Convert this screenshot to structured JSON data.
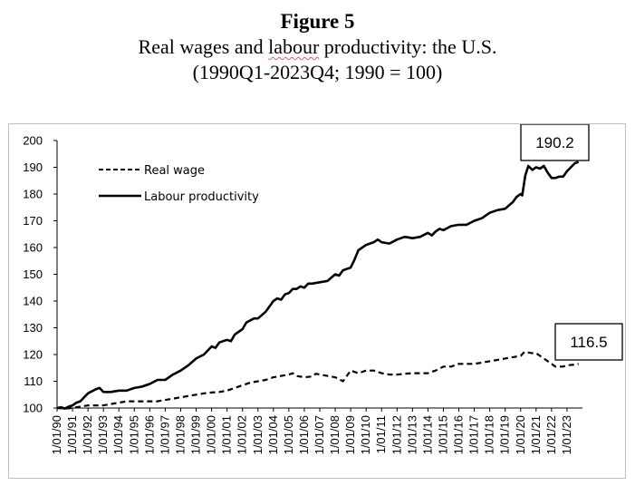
{
  "figure": {
    "label": "Figure 5",
    "title_part1": "Real wages and ",
    "title_underlined": "labour",
    "title_part2": " productivity: the U.S.",
    "subtitle": "(1990Q1-2023Q4; 1990 = 100)"
  },
  "chart_data": {
    "type": "line",
    "title": "Real wages and labour productivity: the U.S.",
    "subtitle": "(1990Q1-2023Q4; 1990 = 100)",
    "xlabel": "",
    "ylabel": "",
    "ylim": [
      100,
      200
    ],
    "yticks": [
      100,
      110,
      120,
      130,
      140,
      150,
      160,
      170,
      180,
      190,
      200
    ],
    "x_ticks": [
      "1/01/90",
      "1/01/91",
      "1/01/92",
      "1/01/93",
      "1/01/94",
      "1/01/95",
      "1/01/96",
      "1/01/97",
      "1/01/98",
      "1/01/99",
      "1/01/00",
      "1/01/01",
      "1/01/02",
      "1/01/03",
      "1/01/04",
      "1/01/05",
      "1/01/06",
      "1/01/07",
      "1/01/08",
      "1/01/09",
      "1/01/10",
      "1/01/11",
      "1/01/12",
      "1/01/13",
      "1/01/14",
      "1/01/15",
      "1/01/16",
      "1/01/17",
      "1/01/18",
      "1/01/19",
      "1/01/20",
      "1/01/21",
      "1/01/22",
      "1/01/23"
    ],
    "grid": false,
    "legend": "top-left",
    "series": [
      {
        "name": "Real wage",
        "style": "dashed",
        "color": "#000000",
        "points": [
          [
            1990.0,
            100.0
          ],
          [
            1990.5,
            99.8
          ],
          [
            1991.0,
            100.0
          ],
          [
            1991.5,
            100.5
          ],
          [
            1992.0,
            101.0
          ],
          [
            1992.5,
            101.0
          ],
          [
            1993.0,
            101.0
          ],
          [
            1993.5,
            101.5
          ],
          [
            1994.0,
            102.0
          ],
          [
            1994.5,
            102.5
          ],
          [
            1995.0,
            102.5
          ],
          [
            1995.5,
            102.5
          ],
          [
            1996.0,
            102.5
          ],
          [
            1996.5,
            102.5
          ],
          [
            1997.0,
            103.0
          ],
          [
            1997.5,
            103.5
          ],
          [
            1998.0,
            104.0
          ],
          [
            1998.5,
            104.5
          ],
          [
            1999.0,
            105.0
          ],
          [
            1999.5,
            105.5
          ],
          [
            2000.0,
            105.8
          ],
          [
            2000.5,
            106.0
          ],
          [
            2001.0,
            106.5
          ],
          [
            2001.5,
            107.5
          ],
          [
            2002.0,
            108.5
          ],
          [
            2002.5,
            109.5
          ],
          [
            2003.0,
            110.0
          ],
          [
            2003.5,
            110.5
          ],
          [
            2004.0,
            111.5
          ],
          [
            2004.5,
            112.0
          ],
          [
            2005.0,
            112.5
          ],
          [
            2005.25,
            113.0
          ],
          [
            2005.5,
            112.0
          ],
          [
            2006.0,
            111.5
          ],
          [
            2006.5,
            111.8
          ],
          [
            2006.75,
            112.8
          ],
          [
            2007.0,
            112.5
          ],
          [
            2007.5,
            112.0
          ],
          [
            2008.0,
            111.5
          ],
          [
            2008.5,
            110.0
          ],
          [
            2009.0,
            114.0
          ],
          [
            2009.5,
            113.0
          ],
          [
            2010.0,
            114.0
          ],
          [
            2010.5,
            114.0
          ],
          [
            2011.0,
            113.0
          ],
          [
            2011.5,
            112.5
          ],
          [
            2012.0,
            112.5
          ],
          [
            2012.5,
            112.8
          ],
          [
            2013.0,
            113.0
          ],
          [
            2013.5,
            113.0
          ],
          [
            2014.0,
            113.0
          ],
          [
            2014.5,
            114.0
          ],
          [
            2015.0,
            115.5
          ],
          [
            2015.5,
            115.5
          ],
          [
            2016.0,
            116.5
          ],
          [
            2016.5,
            116.5
          ],
          [
            2017.0,
            116.5
          ],
          [
            2017.5,
            117.0
          ],
          [
            2018.0,
            117.5
          ],
          [
            2018.5,
            118.0
          ],
          [
            2019.0,
            118.5
          ],
          [
            2019.5,
            119.0
          ],
          [
            2020.0,
            119.5
          ],
          [
            2020.25,
            121.0
          ],
          [
            2020.75,
            120.5
          ],
          [
            2021.0,
            120.5
          ],
          [
            2021.5,
            118.5
          ],
          [
            2022.0,
            116.5
          ],
          [
            2022.25,
            115.5
          ],
          [
            2022.75,
            115.5
          ],
          [
            2023.0,
            116.0
          ],
          [
            2023.5,
            116.2
          ],
          [
            2023.75,
            116.5
          ]
        ]
      },
      {
        "name": "Labour productivity",
        "style": "solid",
        "color": "#000000",
        "points": [
          [
            1990.0,
            100.0
          ],
          [
            1990.25,
            100.3
          ],
          [
            1990.5,
            99.8
          ],
          [
            1990.75,
            100.5
          ],
          [
            1991.0,
            101.0
          ],
          [
            1991.25,
            102.0
          ],
          [
            1991.5,
            102.5
          ],
          [
            1992.0,
            105.5
          ],
          [
            1992.5,
            107.0
          ],
          [
            1992.75,
            107.5
          ],
          [
            1993.0,
            106.0
          ],
          [
            1993.5,
            106.0
          ],
          [
            1994.0,
            106.5
          ],
          [
            1994.5,
            106.5
          ],
          [
            1995.0,
            107.5
          ],
          [
            1995.5,
            108.0
          ],
          [
            1996.0,
            109.0
          ],
          [
            1996.5,
            110.5
          ],
          [
            1997.0,
            110.5
          ],
          [
            1997.5,
            112.5
          ],
          [
            1998.0,
            114.0
          ],
          [
            1998.5,
            116.0
          ],
          [
            1999.0,
            118.5
          ],
          [
            1999.5,
            120.0
          ],
          [
            2000.0,
            123.0
          ],
          [
            2000.25,
            122.5
          ],
          [
            2000.5,
            124.5
          ],
          [
            2001.0,
            125.5
          ],
          [
            2001.25,
            125.0
          ],
          [
            2001.5,
            127.5
          ],
          [
            2002.0,
            129.5
          ],
          [
            2002.25,
            132.0
          ],
          [
            2002.75,
            133.5
          ],
          [
            2003.0,
            133.5
          ],
          [
            2003.5,
            136.0
          ],
          [
            2004.0,
            140.0
          ],
          [
            2004.25,
            141.0
          ],
          [
            2004.5,
            140.5
          ],
          [
            2004.75,
            142.5
          ],
          [
            2005.0,
            143.0
          ],
          [
            2005.25,
            144.5
          ],
          [
            2005.5,
            144.5
          ],
          [
            2005.75,
            145.5
          ],
          [
            2006.0,
            145.0
          ],
          [
            2006.25,
            146.5
          ],
          [
            2006.5,
            146.5
          ],
          [
            2007.0,
            147.0
          ],
          [
            2007.5,
            147.5
          ],
          [
            2008.0,
            150.0
          ],
          [
            2008.25,
            149.5
          ],
          [
            2008.5,
            151.5
          ],
          [
            2009.0,
            152.5
          ],
          [
            2009.25,
            155.5
          ],
          [
            2009.5,
            159.0
          ],
          [
            2010.0,
            161.0
          ],
          [
            2010.5,
            162.0
          ],
          [
            2010.75,
            163.0
          ],
          [
            2011.0,
            162.0
          ],
          [
            2011.5,
            161.5
          ],
          [
            2012.0,
            163.0
          ],
          [
            2012.5,
            164.0
          ],
          [
            2013.0,
            163.5
          ],
          [
            2013.5,
            164.0
          ],
          [
            2014.0,
            165.5
          ],
          [
            2014.25,
            164.5
          ],
          [
            2014.5,
            166.0
          ],
          [
            2014.75,
            167.0
          ],
          [
            2015.0,
            166.5
          ],
          [
            2015.5,
            168.0
          ],
          [
            2016.0,
            168.5
          ],
          [
            2016.5,
            168.5
          ],
          [
            2017.0,
            170.0
          ],
          [
            2017.5,
            171.0
          ],
          [
            2018.0,
            173.0
          ],
          [
            2018.5,
            174.0
          ],
          [
            2019.0,
            174.5
          ],
          [
            2019.5,
            177.0
          ],
          [
            2019.75,
            179.0
          ],
          [
            2020.0,
            180.0
          ],
          [
            2020.1,
            179.5
          ],
          [
            2020.3,
            187.0
          ],
          [
            2020.5,
            190.5
          ],
          [
            2020.75,
            189.0
          ],
          [
            2021.0,
            190.0
          ],
          [
            2021.25,
            189.5
          ],
          [
            2021.5,
            190.5
          ],
          [
            2021.75,
            188.0
          ],
          [
            2022.0,
            186.0
          ],
          [
            2022.25,
            186.0
          ],
          [
            2022.5,
            186.5
          ],
          [
            2022.75,
            186.5
          ],
          [
            2023.0,
            188.5
          ],
          [
            2023.25,
            190.0
          ],
          [
            2023.5,
            191.5
          ],
          [
            2023.75,
            192.0
          ]
        ]
      }
    ],
    "annotations": [
      {
        "text": "190.2",
        "series": "Labour productivity"
      },
      {
        "text": "116.5",
        "series": "Real wage"
      }
    ]
  }
}
